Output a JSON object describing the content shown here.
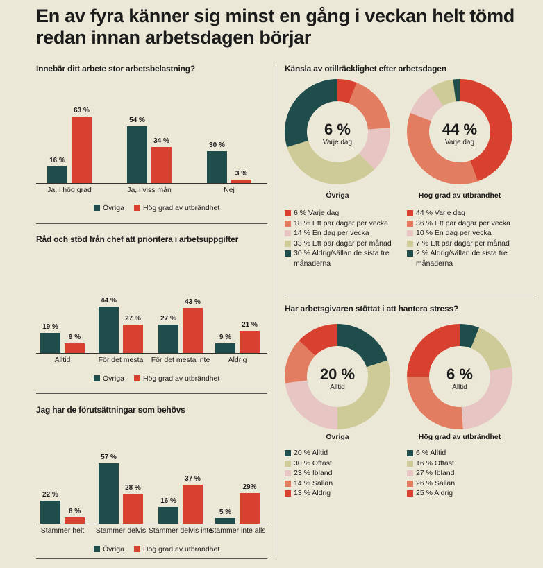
{
  "title": "En av fyra känner sig minst en gång i veckan helt tömd redan innan arbetsdagen börjar",
  "colors": {
    "ovriga": "#1f4d4c",
    "hog": "#d8412f",
    "orange": "#e27d61",
    "pink": "#e6c5c2",
    "khaki": "#cfcb99",
    "background": "#ece8d7"
  },
  "legend": {
    "ovriga": "Övriga",
    "hog": "Hög grad av utbrändhet"
  },
  "chart_data": [
    {
      "type": "bar",
      "title": "Innebär ditt arbete stor arbetsbelastning?",
      "categories": [
        "Ja, i hög grad",
        "Ja, i viss mån",
        "Nej"
      ],
      "series": [
        {
          "name": "Övriga",
          "values": [
            16,
            54,
            30
          ],
          "labels": [
            "16 %",
            "54 %",
            "30 %"
          ]
        },
        {
          "name": "Hög grad av utbrändhet",
          "values": [
            63,
            34,
            3
          ],
          "labels": [
            "63 %",
            "34 %",
            "3 %"
          ]
        }
      ],
      "unit": "%"
    },
    {
      "type": "bar",
      "title": "Råd och stöd från chef att prioritera i arbetsuppgifter",
      "categories": [
        "Alltid",
        "För det mesta",
        "För det mesta inte",
        "Aldrig"
      ],
      "series": [
        {
          "name": "Övriga",
          "values": [
            19,
            44,
            27,
            9
          ],
          "labels": [
            "19 %",
            "44 %",
            "27 %",
            "9 %"
          ]
        },
        {
          "name": "Hög grad av utbrändhet",
          "values": [
            9,
            27,
            43,
            21
          ],
          "labels": [
            "9 %",
            "27 %",
            "43 %",
            "21 %"
          ]
        }
      ],
      "unit": "%"
    },
    {
      "type": "bar",
      "title": "Jag har de förutsättningar som behövs",
      "categories": [
        "Stämmer helt",
        "Stämmer delvis",
        "Stämmer delvis inte",
        "Stämmer inte alls"
      ],
      "series": [
        {
          "name": "Övriga",
          "values": [
            22,
            57,
            16,
            5
          ],
          "labels": [
            "22 %",
            "57 %",
            "16 %",
            "5 %"
          ]
        },
        {
          "name": "Hög grad av utbrändhet",
          "values": [
            6,
            28,
            37,
            29
          ],
          "labels": [
            "6 %",
            "28 %",
            "37 %",
            "29%"
          ]
        }
      ],
      "unit": "%"
    },
    {
      "type": "pie",
      "title": "Känsla av otillräcklighet efter arbetsdagen",
      "donuts": [
        {
          "name": "Övriga",
          "center_value": "6 %",
          "center_label": "Varje dag",
          "slices": [
            {
              "label": "Varje dag",
              "value": 6,
              "text": "6 % Varje dag",
              "color": "#d8412f"
            },
            {
              "label": "Ett par dagar per vecka",
              "value": 18,
              "text": "18 % Ett par dagar per vecka",
              "color": "#e27d61"
            },
            {
              "label": "En dag per vecka",
              "value": 14,
              "text": "14 % En dag per vecka",
              "color": "#e6c5c2"
            },
            {
              "label": "Ett par dagar per månad",
              "value": 33,
              "text": "33 % Ett par dagar per månad",
              "color": "#cfcb99"
            },
            {
              "label": "Aldrig/sällan de sista tre månaderna",
              "value": 30,
              "text": "30 % Aldrig/sällan de sista tre månaderna",
              "color": "#1f4d4c"
            }
          ]
        },
        {
          "name": "Hög grad av utbrändhet",
          "center_value": "44 %",
          "center_label": "Varje dag",
          "slices": [
            {
              "label": "Varje dag",
              "value": 44,
              "text": "44 % Varje dag",
              "color": "#d8412f"
            },
            {
              "label": "Ett par dagar per vecka",
              "value": 36,
              "text": "36 % Ett par dagar per vecka",
              "color": "#e27d61"
            },
            {
              "label": "En dag per vecka",
              "value": 10,
              "text": "10 % En dag per vecka",
              "color": "#e6c5c2"
            },
            {
              "label": "Ett par dagar per månad",
              "value": 7,
              "text": "7 % Ett par dagar per månad",
              "color": "#cfcb99"
            },
            {
              "label": "Aldrig/sällan de sista tre månaderna",
              "value": 2,
              "text": "2 % Aldrig/sällan de sista tre månaderna",
              "color": "#1f4d4c"
            }
          ]
        }
      ]
    },
    {
      "type": "pie",
      "title": "Har arbetsgivaren stöttat i att hantera stress?",
      "donuts": [
        {
          "name": "Övriga",
          "center_value": "20 %",
          "center_label": "Alltid",
          "slices": [
            {
              "label": "Alltid",
              "value": 20,
              "text": "20 % Alltid",
              "color": "#1f4d4c"
            },
            {
              "label": "Oftast",
              "value": 30,
              "text": "30 % Oftast",
              "color": "#cfcb99"
            },
            {
              "label": "Ibland",
              "value": 23,
              "text": "23 % Ibland",
              "color": "#e6c5c2"
            },
            {
              "label": "Sällan",
              "value": 14,
              "text": "14 % Sällan",
              "color": "#e27d61"
            },
            {
              "label": "Aldrig",
              "value": 13,
              "text": "13 % Aldrig",
              "color": "#d8412f"
            }
          ]
        },
        {
          "name": "Hög grad av utbrändhet",
          "center_value": "6 %",
          "center_label": "Alltid",
          "slices": [
            {
              "label": "Alltid",
              "value": 6,
              "text": "6 % Alltid",
              "color": "#1f4d4c"
            },
            {
              "label": "Oftast",
              "value": 16,
              "text": "16 % Oftast",
              "color": "#cfcb99"
            },
            {
              "label": "Ibland",
              "value": 27,
              "text": "27 % Ibland",
              "color": "#e6c5c2"
            },
            {
              "label": "Sällan",
              "value": 26,
              "text": "26 % Sällan",
              "color": "#e27d61"
            },
            {
              "label": "Aldrig",
              "value": 25,
              "text": "25 % Aldrig",
              "color": "#d8412f"
            }
          ]
        }
      ]
    }
  ]
}
